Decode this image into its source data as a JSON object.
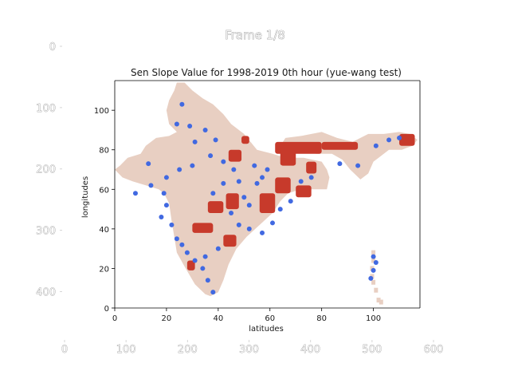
{
  "frame_title": "Frame 1/8",
  "outer_axes": {
    "x_ticks": [
      0,
      100,
      200,
      300,
      400,
      500,
      600
    ],
    "y_ticks": [
      0,
      100,
      200,
      300,
      400
    ]
  },
  "chart_data": {
    "type": "heatmap",
    "title": "Sen Slope Value for 1998-2019 0th hour (yue-wang test)",
    "xlabel": "latitudes",
    "ylabel": "longitudes",
    "xlim": [
      0,
      118
    ],
    "ylim": [
      0,
      115
    ],
    "xticks": [
      0,
      20,
      40,
      60,
      80,
      100
    ],
    "yticks": [
      0,
      20,
      40,
      60,
      80,
      100
    ],
    "grid": false,
    "colors": {
      "background_land": "#e8cfc2",
      "positive_slope": "#c73a2b",
      "negative_slope": "#4169e1"
    },
    "land_outline": [
      [
        23,
        110
      ],
      [
        21,
        105
      ],
      [
        20,
        100
      ],
      [
        21,
        93
      ],
      [
        24,
        89
      ],
      [
        21,
        87
      ],
      [
        16,
        86
      ],
      [
        12,
        82
      ],
      [
        10,
        78
      ],
      [
        5,
        76
      ],
      [
        2,
        72
      ],
      [
        0,
        70
      ],
      [
        3,
        66
      ],
      [
        7,
        64
      ],
      [
        12,
        62
      ],
      [
        17,
        60
      ],
      [
        19,
        58
      ],
      [
        21,
        53
      ],
      [
        22,
        44
      ],
      [
        23,
        36
      ],
      [
        24,
        28
      ],
      [
        27,
        21
      ],
      [
        31,
        12
      ],
      [
        35,
        7
      ],
      [
        37,
        6
      ],
      [
        40,
        8
      ],
      [
        42,
        14
      ],
      [
        44,
        22
      ],
      [
        47,
        30
      ],
      [
        51,
        36
      ],
      [
        56,
        42
      ],
      [
        61,
        48
      ],
      [
        64,
        54
      ],
      [
        67,
        58
      ],
      [
        72,
        60
      ],
      [
        78,
        60
      ],
      [
        82,
        60
      ],
      [
        83,
        66
      ],
      [
        82,
        70
      ],
      [
        80,
        74
      ],
      [
        73,
        76
      ],
      [
        66,
        76
      ],
      [
        61,
        78
      ],
      [
        55,
        80
      ],
      [
        50,
        88
      ],
      [
        45,
        93
      ],
      [
        42,
        98
      ],
      [
        38,
        103
      ],
      [
        34,
        106
      ],
      [
        30,
        110
      ],
      [
        27,
        114
      ],
      [
        24,
        114
      ]
    ],
    "land_outline_northeast": [
      [
        63,
        80
      ],
      [
        66,
        86
      ],
      [
        72,
        87
      ],
      [
        80,
        89
      ],
      [
        86,
        86
      ],
      [
        92,
        84
      ],
      [
        98,
        88
      ],
      [
        104,
        88
      ],
      [
        110,
        89
      ],
      [
        114,
        88
      ],
      [
        117,
        85
      ],
      [
        115,
        82
      ],
      [
        111,
        80
      ],
      [
        106,
        80
      ],
      [
        102,
        76
      ],
      [
        100,
        74
      ],
      [
        98,
        68
      ],
      [
        95,
        65
      ],
      [
        91,
        70
      ],
      [
        88,
        75
      ],
      [
        84,
        78
      ],
      [
        78,
        78
      ],
      [
        72,
        79
      ],
      [
        67,
        78
      ]
    ],
    "islands": [
      [
        100,
        28
      ],
      [
        100,
        24
      ],
      [
        99.5,
        20
      ],
      [
        99.5,
        16
      ],
      [
        100,
        13
      ],
      [
        101,
        9
      ],
      [
        102,
        4
      ],
      [
        103,
        3
      ]
    ],
    "positive_regions": [
      {
        "x": [
          62,
          80
        ],
        "y": [
          84,
          78
        ]
      },
      {
        "x": [
          80,
          94
        ],
        "y": [
          84,
          80
        ]
      },
      {
        "x": [
          64,
          70
        ],
        "y": [
          82,
          72
        ]
      },
      {
        "x": [
          74,
          78
        ],
        "y": [
          74,
          68
        ]
      },
      {
        "x": [
          43,
          48
        ],
        "y": [
          58,
          50
        ]
      },
      {
        "x": [
          56,
          62
        ],
        "y": [
          58,
          48
        ]
      },
      {
        "x": [
          62,
          68
        ],
        "y": [
          66,
          58
        ]
      },
      {
        "x": [
          70,
          76
        ],
        "y": [
          62,
          56
        ]
      },
      {
        "x": [
          44,
          49
        ],
        "y": [
          80,
          74
        ]
      },
      {
        "x": [
          49,
          52
        ],
        "y": [
          87,
          83
        ]
      },
      {
        "x": [
          36,
          42
        ],
        "y": [
          54,
          48
        ]
      },
      {
        "x": [
          30,
          38
        ],
        "y": [
          43,
          38
        ]
      },
      {
        "x": [
          42,
          47
        ],
        "y": [
          37,
          31
        ]
      },
      {
        "x": [
          28,
          31
        ],
        "y": [
          24,
          19
        ]
      },
      {
        "x": [
          110,
          116
        ],
        "y": [
          88,
          82
        ]
      }
    ],
    "negative_points": [
      [
        26,
        103
      ],
      [
        24,
        93
      ],
      [
        29,
        92
      ],
      [
        35,
        90
      ],
      [
        31,
        84
      ],
      [
        39,
        85
      ],
      [
        37,
        77
      ],
      [
        30,
        72
      ],
      [
        20,
        66
      ],
      [
        14,
        62
      ],
      [
        8,
        58
      ],
      [
        13,
        73
      ],
      [
        25,
        70
      ],
      [
        19,
        58
      ],
      [
        20,
        52
      ],
      [
        18,
        46
      ],
      [
        22,
        42
      ],
      [
        24,
        35
      ],
      [
        26,
        32
      ],
      [
        28,
        28
      ],
      [
        31,
        24
      ],
      [
        34,
        20
      ],
      [
        36,
        14
      ],
      [
        38,
        8
      ],
      [
        35,
        26
      ],
      [
        40,
        30
      ],
      [
        38,
        58
      ],
      [
        42,
        63
      ],
      [
        48,
        64
      ],
      [
        50,
        56
      ],
      [
        52,
        52
      ],
      [
        55,
        63
      ],
      [
        57,
        66
      ],
      [
        54,
        72
      ],
      [
        59,
        70
      ],
      [
        46,
        70
      ],
      [
        42,
        74
      ],
      [
        45,
        48
      ],
      [
        48,
        42
      ],
      [
        52,
        40
      ],
      [
        57,
        38
      ],
      [
        61,
        43
      ],
      [
        64,
        50
      ],
      [
        68,
        54
      ],
      [
        72,
        64
      ],
      [
        76,
        66
      ],
      [
        87,
        73
      ],
      [
        94,
        72
      ],
      [
        101,
        82
      ],
      [
        106,
        85
      ],
      [
        110,
        86
      ],
      [
        100,
        26
      ],
      [
        101,
        23
      ],
      [
        100,
        19
      ],
      [
        99,
        15
      ]
    ]
  }
}
